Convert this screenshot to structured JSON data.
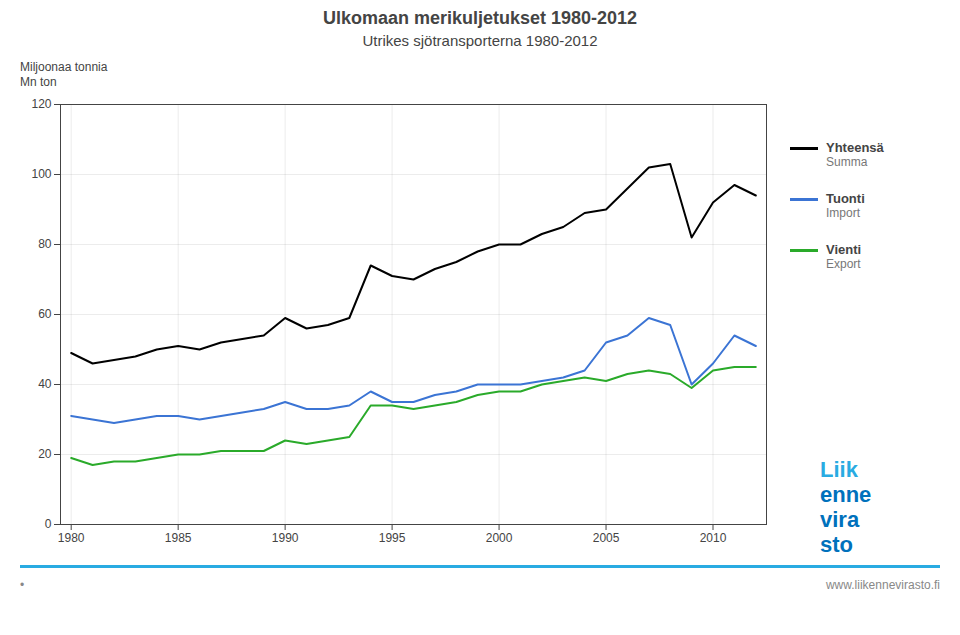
{
  "chart_data": {
    "type": "line",
    "title": "Ulkomaan merikuljetukset 1980-2012",
    "subtitle": "Utrikes sjötransporterna 1980-2012",
    "ylabel": [
      "Miljoonaa tonnia",
      "Mn ton"
    ],
    "x": [
      1980,
      1981,
      1982,
      1983,
      1984,
      1985,
      1986,
      1987,
      1988,
      1989,
      1990,
      1991,
      1992,
      1993,
      1994,
      1995,
      1996,
      1997,
      1998,
      1999,
      2000,
      2001,
      2002,
      2003,
      2004,
      2005,
      2006,
      2007,
      2008,
      2009,
      2010,
      2011,
      2012
    ],
    "series": [
      {
        "name": "Yhteensä",
        "name2": "Summa",
        "color": "#000000",
        "values": [
          49,
          46,
          47,
          48,
          50,
          51,
          50,
          52,
          53,
          54,
          59,
          56,
          57,
          59,
          74,
          71,
          70,
          73,
          75,
          78,
          80,
          80,
          83,
          85,
          89,
          90,
          96,
          102,
          103,
          82,
          92,
          97,
          94
        ]
      },
      {
        "name": "Tuonti",
        "name2": "Import",
        "color": "#3B74D4",
        "values": [
          31,
          30,
          29,
          30,
          31,
          31,
          30,
          31,
          32,
          33,
          35,
          33,
          33,
          34,
          38,
          35,
          35,
          37,
          38,
          40,
          40,
          40,
          41,
          42,
          44,
          52,
          54,
          59,
          57,
          40,
          46,
          54,
          51
        ]
      },
      {
        "name": "Vienti",
        "name2": "Export",
        "color": "#2AAA2A",
        "values": [
          19,
          17,
          18,
          18,
          19,
          20,
          20,
          21,
          21,
          21,
          24,
          23,
          24,
          25,
          34,
          34,
          33,
          34,
          35,
          37,
          38,
          38,
          40,
          41,
          42,
          41,
          43,
          44,
          43,
          39,
          44,
          45,
          45
        ]
      }
    ],
    "xlim": [
      1979.5,
      2012.5
    ],
    "ylim": [
      0,
      120
    ],
    "xticks": [
      1980,
      1985,
      1990,
      1995,
      2000,
      2005,
      2010
    ],
    "yticks": [
      0,
      20,
      40,
      60,
      80,
      100,
      120
    ],
    "grid": true,
    "legend": "right",
    "annotations": [
      "•",
      "www.liikennevirasto.fi"
    ],
    "logo": [
      {
        "text": "Liik",
        "color": "#29ABE2"
      },
      {
        "text": "enne",
        "color": "#0071BC"
      },
      {
        "text": "vira",
        "color": "#0071BC"
      },
      {
        "text": "sto",
        "color": "#0071BC"
      }
    ]
  }
}
